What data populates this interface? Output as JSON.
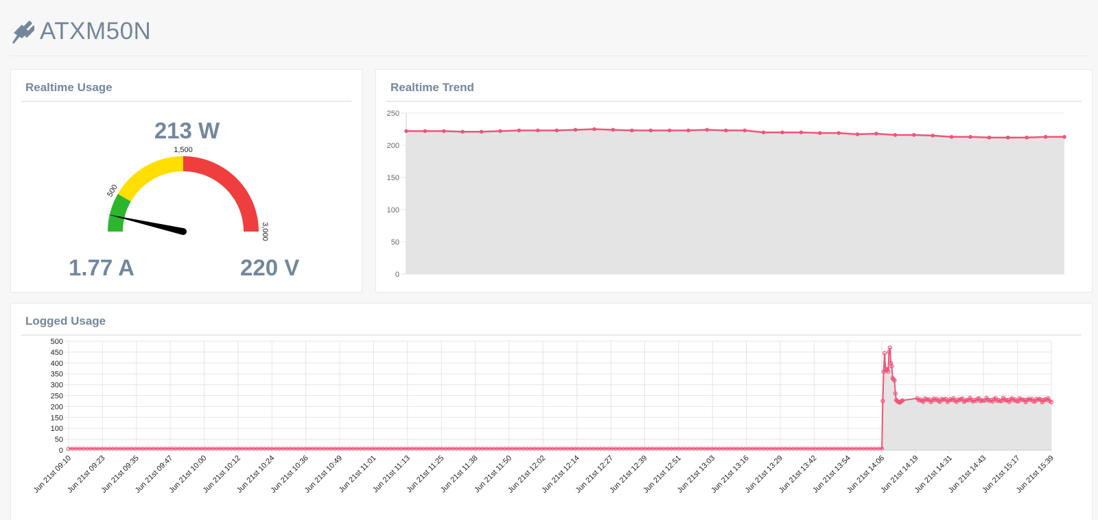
{
  "header": {
    "title": "ATXM50N",
    "icon": "plug-icon"
  },
  "usage_panel": {
    "title": "Realtime Usage",
    "power": "213 W",
    "current": "1.77 A",
    "voltage": "220 V",
    "gauge": {
      "min": 0,
      "max": 3000,
      "value": 213,
      "ranges": [
        {
          "from": 0,
          "to": 500,
          "color": "#2eb52e"
        },
        {
          "from": 500,
          "to": 1500,
          "color": "#ffde00"
        },
        {
          "from": 1500,
          "to": 3000,
          "color": "#f03e3e"
        }
      ],
      "labels": [
        "500",
        "1,500",
        "3,000"
      ]
    }
  },
  "trend_panel": {
    "title": "Realtime Trend"
  },
  "logged_panel": {
    "title": "Logged Usage"
  },
  "colors": {
    "line": "#f0547a",
    "fill": "#e4e4e4",
    "grid": "#e5e5e5"
  },
  "chart_data": [
    {
      "type": "area",
      "ylim": [
        0,
        250
      ],
      "yticks": [
        0,
        50,
        100,
        150,
        200,
        250
      ],
      "values": [
        222,
        222,
        222,
        221,
        221,
        222,
        223,
        223,
        223,
        224,
        225,
        224,
        223,
        223,
        223,
        223,
        224,
        223,
        223,
        220,
        220,
        220,
        219,
        219,
        217,
        218,
        216,
        216,
        215,
        213,
        213,
        212,
        212,
        212,
        213,
        213
      ]
    },
    {
      "type": "area",
      "ylim": [
        0,
        500
      ],
      "yticks": [
        0,
        50,
        100,
        150,
        200,
        250,
        300,
        350,
        400,
        450,
        500
      ],
      "categories": [
        "Jun 21st 09:10",
        "Jun 21st 09:23",
        "Jun 21st 09:35",
        "Jun 21st 09:47",
        "Jun 21st 10:00",
        "Jun 21st 10:12",
        "Jun 21st 10:24",
        "Jun 21st 10:36",
        "Jun 21st 10:49",
        "Jun 21st 11:01",
        "Jun 21st 11:13",
        "Jun 21st 11:25",
        "Jun 21st 11:38",
        "Jun 21st 11:50",
        "Jun 21st 12:02",
        "Jun 21st 12:14",
        "Jun 21st 12:27",
        "Jun 21st 12:39",
        "Jun 21st 12:51",
        "Jun 21st 13:03",
        "Jun 21st 13:16",
        "Jun 21st 13:29",
        "Jun 21st 13:42",
        "Jun 21st 13:54",
        "Jun 21st 14:06",
        "Jun 21st 14:19",
        "Jun 21st 14:31",
        "Jun 21st 14:43",
        "Jun 21st 15:17",
        "Jun 21st 15:39"
      ],
      "series": [
        {
          "segments": [
            {
              "from": "Jun 21st 09:10",
              "to": "Jun 21st 14:06",
              "value": 6
            },
            {
              "at": "Jun 21st 14:06",
              "values": [
                6,
                225,
                360,
                445,
                375,
                365,
                370,
                360,
                450,
                470,
                400,
                385,
                330,
                325,
                320,
                260,
                230,
                225,
                222,
                220,
                218,
                222,
                225,
                228
              ]
            },
            {
              "from": "Jun 21st 14:19",
              "to": "Jun 21st 15:39",
              "value": 230,
              "last": 220
            }
          ]
        }
      ]
    }
  ]
}
